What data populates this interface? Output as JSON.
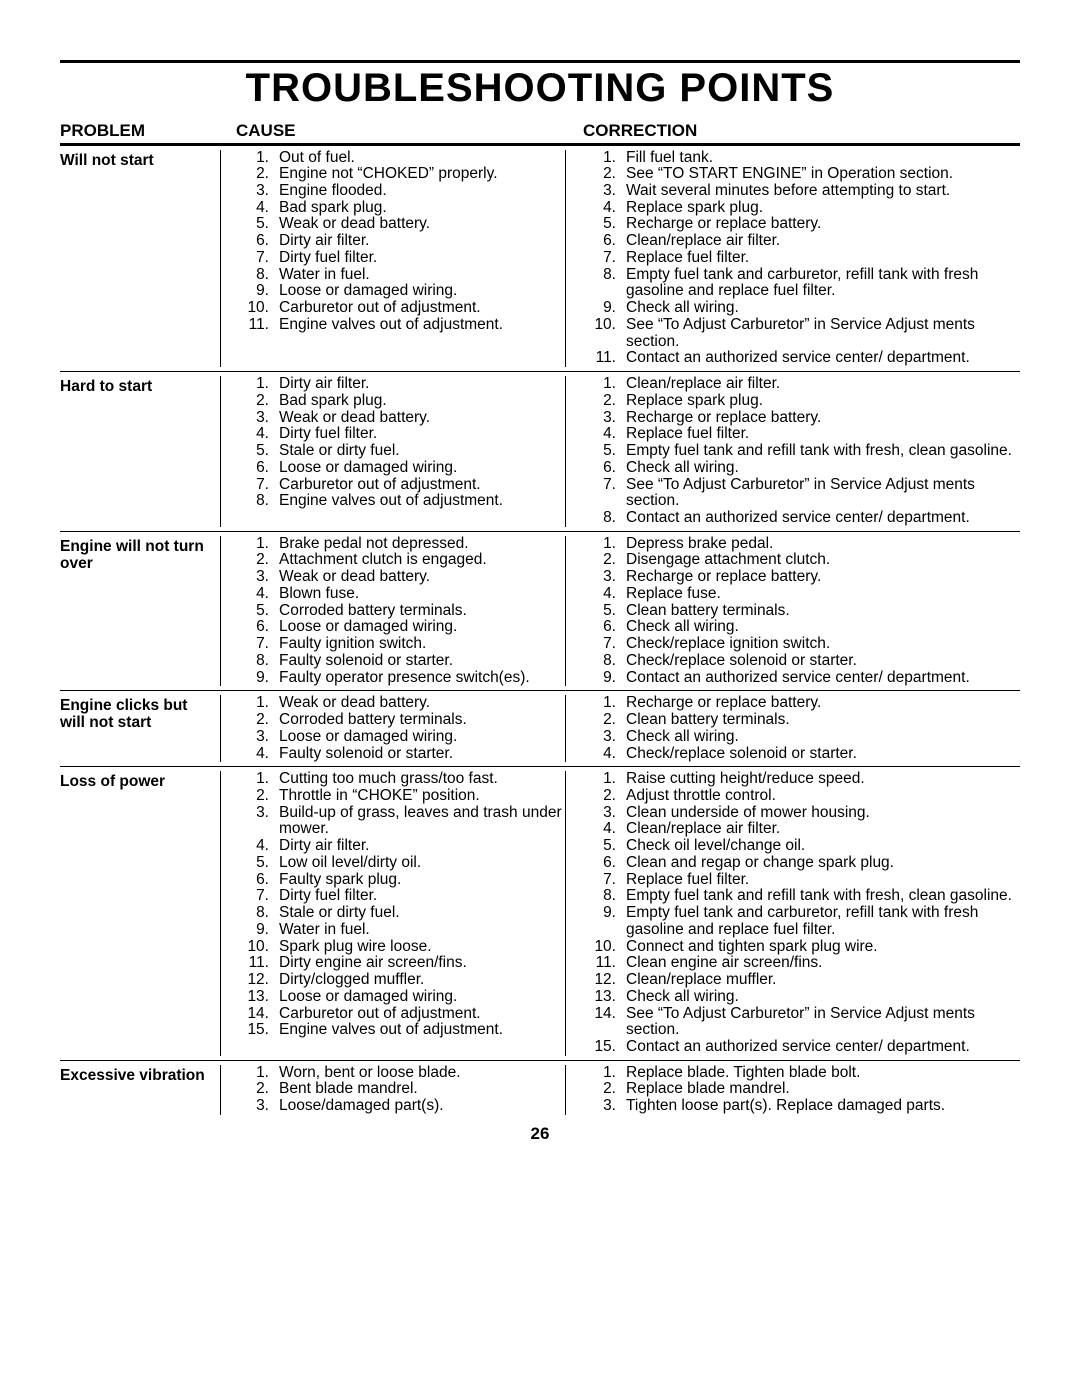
{
  "title": "TROUBLESHOOTING POINTS",
  "headers": {
    "problem": "PROBLEM",
    "cause": "CAUSE",
    "correction": "CORRECTION"
  },
  "page_number": "26",
  "sections": [
    {
      "problem": "Will not start",
      "causes": [
        "Out of fuel.",
        "Engine not “CHOKED” properly.",
        "Engine flooded.",
        "Bad spark plug.",
        "Weak or dead battery.",
        "Dirty air filter.",
        "Dirty fuel filter.",
        "Water in fuel.",
        "Loose or damaged wiring.",
        "Carburetor out of adjustment.",
        "Engine valves out of adjustment."
      ],
      "corrections": [
        "Fill fuel tank.",
        "See “TO START ENGINE” in Operation section.",
        "Wait several minutes before attempting to start.",
        "Replace spark plug.",
        "Recharge or replace battery.",
        "Clean/replace air filter.",
        "Replace fuel filter.",
        "Empty fuel tank and carburetor, refill tank with fresh gasoline and replace fuel filter.",
        "Check all wiring.",
        "See “To Adjust Carburetor” in Service Adjust ments section.",
        "Contact an authorized service center/ department."
      ],
      "cause_align": [
        null,
        null,
        null,
        null,
        null,
        null,
        null,
        null,
        9,
        10,
        11
      ],
      "corr_rowspans": {
        "7": 2,
        "9": 2,
        "10": 2
      }
    },
    {
      "problem": "Hard to start",
      "causes": [
        "Dirty air filter.",
        "Bad spark plug.",
        "Weak or dead battery.",
        "Dirty fuel filter.",
        "Stale or dirty fuel.",
        "Loose or damaged wiring.",
        "Carburetor out of adjustment.",
        "Engine valves out of adjustment."
      ],
      "corrections": [
        "Clean/replace air filter.",
        "Replace spark plug.",
        "Recharge or replace battery.",
        "Replace fuel filter.",
        "Empty fuel tank and refill tank with fresh, clean gasoline.",
        "Check all wiring.",
        "See “To Adjust Carburetor” in Service Adjust ments section.",
        "Contact an authorized service center/ department."
      ],
      "cause_align": [
        null,
        null,
        null,
        null,
        null,
        6,
        7,
        8
      ],
      "corr_rowspans": {
        "4": 2,
        "6": 2,
        "7": 2
      }
    },
    {
      "problem": "Engine will not turn over",
      "causes": [
        "Brake pedal not depressed.",
        "Attachment clutch is engaged.",
        "Weak or dead battery.",
        "Blown fuse.",
        "Corroded battery terminals.",
        "Loose or damaged wiring.",
        "Faulty ignition switch.",
        "Faulty solenoid or starter.",
        "Faulty operator presence switch(es)."
      ],
      "corrections": [
        "Depress brake pedal.",
        "Disengage attachment clutch.",
        "Recharge or replace battery.",
        "Replace fuse.",
        "Clean battery terminals.",
        "Check all wiring.",
        "Check/replace ignition switch.",
        "Check/replace solenoid or starter.",
        "Contact an authorized service center/ department."
      ],
      "corr_rowspans": {
        "8": 2
      }
    },
    {
      "problem": "Engine clicks but will not start",
      "causes": [
        "Weak or dead battery.",
        "Corroded battery terminals.",
        "Loose or damaged wiring.",
        "Faulty solenoid or starter."
      ],
      "corrections": [
        "Recharge or replace battery.",
        "Clean battery terminals.",
        "Check all wiring.",
        "Check/replace solenoid or starter."
      ]
    },
    {
      "problem": "Loss of power",
      "causes": [
        "Cutting too much grass/too fast.",
        "Throttle in “CHOKE” position.",
        "Build-up of grass, leaves and trash under mower.",
        "Dirty air filter.",
        "Low oil level/dirty oil.",
        "Faulty spark plug.",
        "Dirty fuel filter.",
        "Stale or dirty fuel.",
        "Water in fuel.",
        "Spark plug wire loose.",
        "Dirty engine air screen/fins.",
        "Dirty/clogged muffler.",
        "Loose or damaged wiring.",
        "Carburetor out of adjustment.",
        "Engine valves out of adjustment."
      ],
      "corrections": [
        "Raise cutting height/reduce speed.",
        "Adjust throttle control.",
        "Clean underside of mower housing.",
        "Clean/replace air filter.",
        "Check oil level/change oil.",
        "Clean and regap or change spark plug.",
        "Replace fuel filter.",
        "Empty fuel tank and refill tank with fresh, clean gasoline.",
        "Empty fuel tank and carburetor, refill tank with fresh gasoline and replace fuel filter.",
        "Connect and tighten spark plug wire.",
        "Clean engine air screen/fins.",
        "Clean/replace muffler.",
        "Check all wiring.",
        "See “To Adjust Carburetor” in Service Adjust ments section.",
        "Contact an authorized service center/ department."
      ],
      "cause_align": [
        null,
        null,
        null,
        null,
        null,
        null,
        null,
        null,
        9,
        10,
        11,
        12,
        13,
        14,
        15
      ],
      "corr_rowspans": {
        "7": 2,
        "8": 2,
        "13": 2,
        "14": 2
      }
    },
    {
      "problem": "Excessive vibration",
      "causes": [
        "Worn, bent or loose blade.",
        "Bent blade mandrel.",
        "Loose/damaged part(s)."
      ],
      "corrections": [
        "Replace blade. Tighten blade bolt.",
        "Replace blade mandrel.",
        "Tighten loose part(s).  Replace damaged parts."
      ]
    }
  ]
}
